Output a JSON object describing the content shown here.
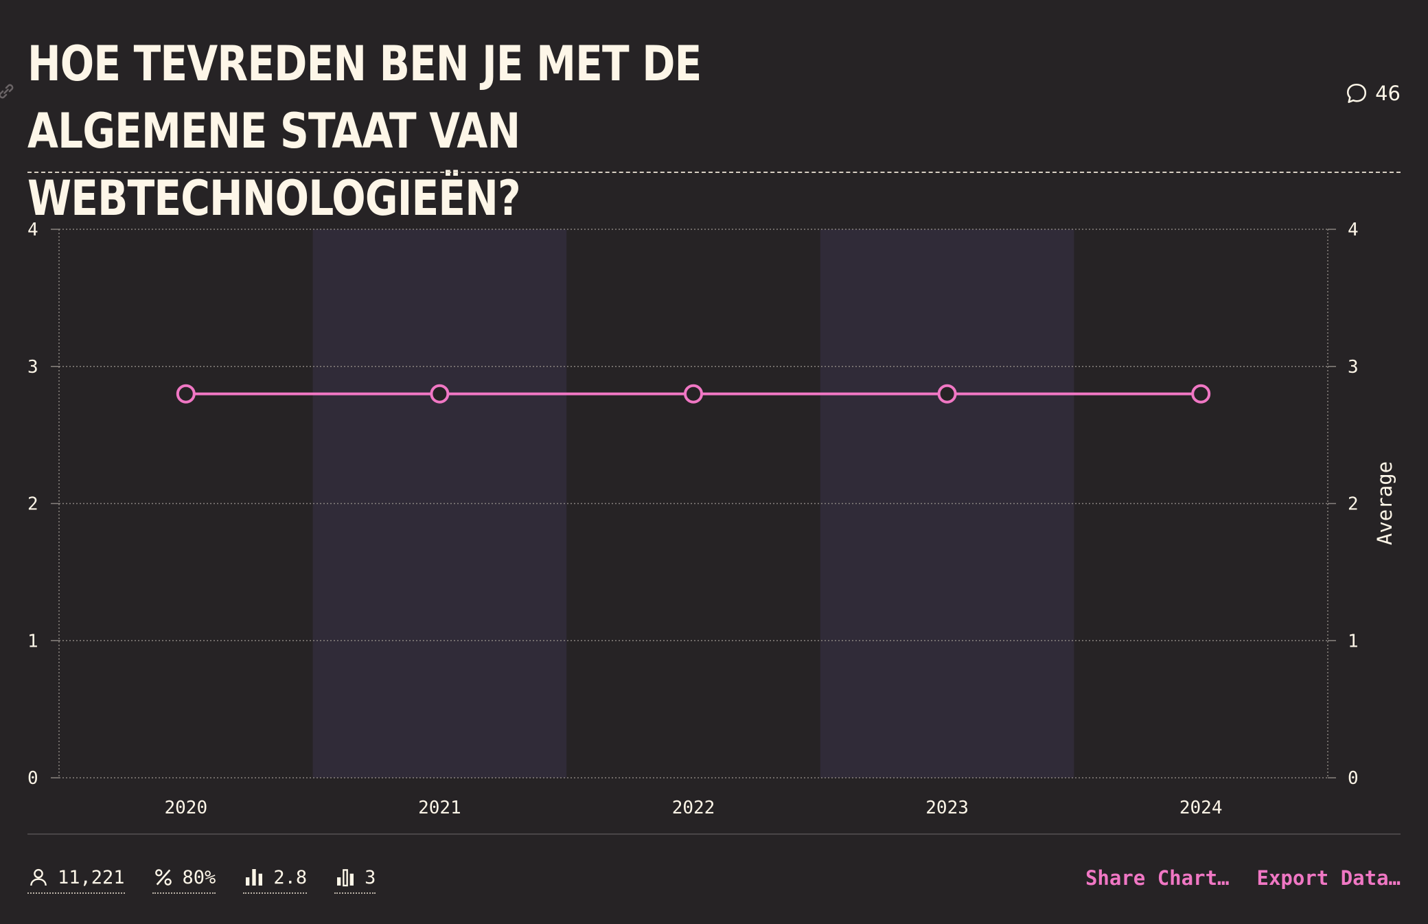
{
  "title": "Hoe tevreden ben je met de algemene staat van webtechnologieën?",
  "comments_count": "46",
  "colors": {
    "background": "#262325",
    "band": "#302b38",
    "line": "#f077c4",
    "text": "#fdf6e8",
    "grid": "#8a8480"
  },
  "chart_data": {
    "type": "line",
    "x": [
      "2020",
      "2021",
      "2022",
      "2023",
      "2024"
    ],
    "series": [
      {
        "values": [
          2.8,
          2.8,
          2.8,
          2.8,
          2.8
        ]
      }
    ],
    "ylabel": "Average",
    "ylim": [
      0,
      4
    ],
    "yticks": [
      "0",
      "1",
      "2",
      "3",
      "4"
    ],
    "grid": true,
    "legend": "none"
  },
  "stats": {
    "respondents": "11,221",
    "percentage": "80%",
    "average": "2.8",
    "median": "3"
  },
  "actions": {
    "share": "Share Chart…",
    "export": "Export Data…"
  }
}
